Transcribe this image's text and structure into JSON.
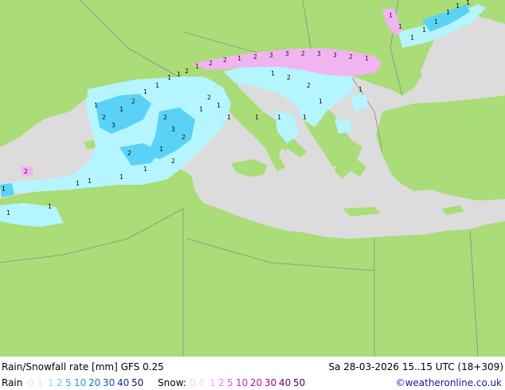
{
  "header": {
    "title": "Rain/Snowfall rate [mm] GFS 0.25",
    "time": "Sa 28-03-2026 15..15 UTC (18+309)"
  },
  "legend": {
    "rain_label": "Rain",
    "rain_levels": [
      {
        "t": "0.1",
        "c": "#c8f0ff"
      },
      {
        "t": "1",
        "c": "#8ce0ff"
      },
      {
        "t": "2",
        "c": "#5ac8ff"
      },
      {
        "t": "5",
        "c": "#32b4f0"
      },
      {
        "t": "10",
        "c": "#1e96e6"
      },
      {
        "t": "20",
        "c": "#1478d2"
      },
      {
        "t": "30",
        "c": "#1450b4"
      },
      {
        "t": "40",
        "c": "#142d96"
      },
      {
        "t": "50",
        "c": "#0a1478"
      }
    ],
    "snow_label": "Snow:",
    "snow_levels": [
      {
        "t": "0.1",
        "c": "#fad2fa"
      },
      {
        "t": "1",
        "c": "#f5aaf5"
      },
      {
        "t": "2",
        "c": "#f082f0"
      },
      {
        "t": "5",
        "c": "#e150e1"
      },
      {
        "t": "10",
        "c": "#c828c8"
      },
      {
        "t": "20",
        "c": "#aa14aa"
      },
      {
        "t": "30",
        "c": "#8c0a8c"
      },
      {
        "t": "40",
        "c": "#6e006e"
      },
      {
        "t": "50",
        "c": "#500050"
      }
    ]
  },
  "credit": "©weatheronline.co.uk",
  "colors": {
    "land": "#aadc78",
    "sea": "#dcdcdc",
    "rain_light": "#b4f5ff",
    "rain_mid": "#5ad2f5",
    "snow": "#f0b4f0",
    "border": "#8c8c8c"
  }
}
